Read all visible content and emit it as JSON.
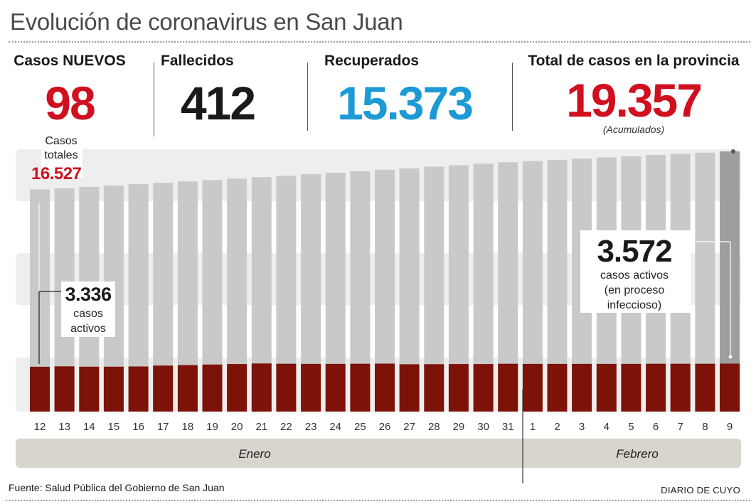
{
  "title": "Evolución de coronavirus en San Juan",
  "stats": {
    "nuevos_label": "Casos NUEVOS",
    "nuevos_value": "98",
    "fallecidos_label": "Fallecidos",
    "fallecidos_value": "412",
    "recuperados_label": "Recuperados",
    "recuperados_value": "15.373",
    "total_label": "Total de casos en la provincia",
    "total_value": "19.357",
    "total_note": "(Acumulados)"
  },
  "colors": {
    "red": "#d0101e",
    "blue": "#1b9ad6",
    "total_bar": "#c9c9c9",
    "total_bar_last": "#9e9e9e",
    "active_bar": "#7d1208",
    "band": "#eeeeee",
    "month_strip": "#d8d5cd"
  },
  "annotations": {
    "start_total_label_1": "Casos",
    "start_total_label_2": "totales",
    "start_total_value": "16.527",
    "start_active_value": "3.336",
    "start_active_label_1": "casos",
    "start_active_label_2": "activos",
    "end_active_value": "3.572",
    "end_active_label_1": "casos activos",
    "end_active_label_2": "(en proceso",
    "end_active_label_3": "infeccioso)"
  },
  "months": {
    "first": "Enero",
    "second": "Febrero"
  },
  "footer": {
    "source": "Fuente: Salud Pública del Gobierno de San Juan",
    "brand": "DIARIO DE CUYO"
  },
  "chart_data": {
    "type": "bar",
    "categories": [
      "12",
      "13",
      "14",
      "15",
      "16",
      "17",
      "18",
      "19",
      "20",
      "21",
      "22",
      "23",
      "24",
      "25",
      "26",
      "27",
      "28",
      "29",
      "30",
      "31",
      "1",
      "2",
      "3",
      "4",
      "5",
      "6",
      "7",
      "8",
      "9"
    ],
    "series": [
      {
        "name": "Casos totales",
        "values": [
          16527,
          16620,
          16720,
          16820,
          16920,
          17020,
          17120,
          17220,
          17330,
          17440,
          17550,
          17660,
          17770,
          17880,
          17990,
          18100,
          18220,
          18330,
          18440,
          18550,
          18640,
          18730,
          18820,
          18910,
          19000,
          19090,
          19180,
          19260,
          19357
        ]
      },
      {
        "name": "Casos activos",
        "values": [
          3336,
          3370,
          3340,
          3345,
          3360,
          3420,
          3460,
          3500,
          3540,
          3580,
          3560,
          3550,
          3550,
          3560,
          3570,
          3520,
          3530,
          3540,
          3540,
          3560,
          3550,
          3550,
          3550,
          3550,
          3550,
          3560,
          3560,
          3560,
          3572
        ]
      }
    ],
    "xlabel": "",
    "ylabel": "",
    "ylim": [
      0,
      19357
    ],
    "grid": false,
    "legend": "none"
  }
}
